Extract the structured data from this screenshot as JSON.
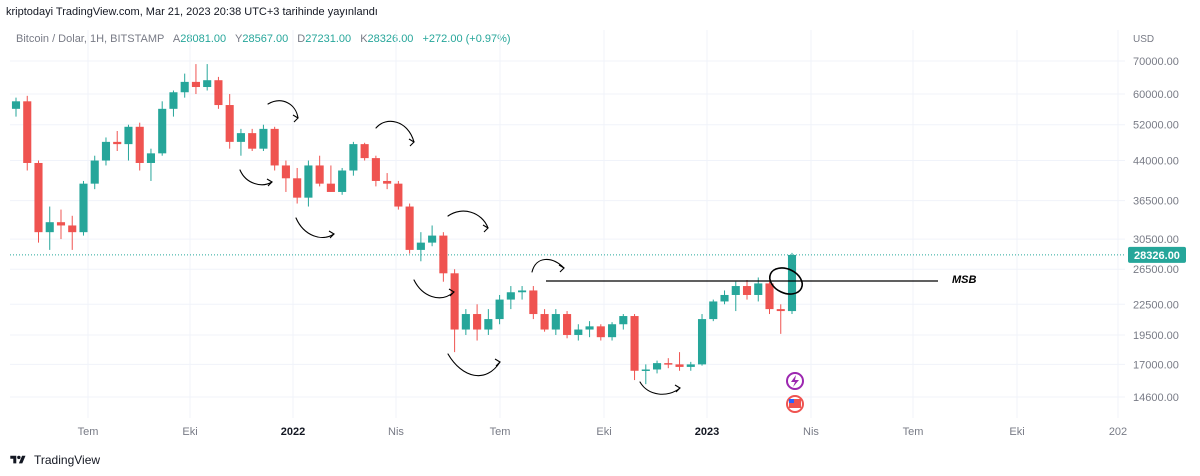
{
  "header": {
    "publish_text": "kriptodayi TradingView.com, Mar 21, 2023 20:38 UTC+3 tarihinde yayınlandı"
  },
  "symbol": {
    "name": "Bitcoin / Dolar, 1H, BITSTAMP",
    "open_label": "A",
    "open": "28081.00",
    "high_label": "Y",
    "high": "28567.00",
    "low_label": "D",
    "low": "27231.00",
    "close_label": "K",
    "close": "28326.00",
    "change": "+272.00 (+0.97%)"
  },
  "footer": {
    "brand": "TradingView"
  },
  "colors": {
    "up": "#26a69a",
    "down": "#ef5350",
    "axis_text": "#787b86",
    "current_price_bg": "#26a69a",
    "annotation": "#000000",
    "grid": "#f0f3fa"
  },
  "chart_data": {
    "type": "candlestick",
    "scale": "log",
    "currency_label": "USD",
    "y_ticks": [
      "70000.00",
      "60000.00",
      "52000.00",
      "44000.00",
      "36500.00",
      "30500.00",
      "26500.00",
      "22500.00",
      "19500.00",
      "17000.00",
      "14600.00"
    ],
    "current_price": "28326.00",
    "x_ticks": [
      "Tem",
      "Eki",
      "2022",
      "Nis",
      "Tem",
      "Eki",
      "2023",
      "Nis",
      "Tem",
      "Eki",
      "202"
    ],
    "annotation_label": "MSB",
    "candles": [
      [
        56000,
        59000,
        54000,
        58000
      ],
      [
        58000,
        59500,
        42000,
        43500
      ],
      [
        43500,
        44000,
        30000,
        31500
      ],
      [
        31500,
        35500,
        29000,
        33000
      ],
      [
        33000,
        35000,
        30500,
        32500
      ],
      [
        32500,
        34000,
        29000,
        31500
      ],
      [
        31500,
        40000,
        31000,
        39500
      ],
      [
        39500,
        45000,
        38500,
        44000
      ],
      [
        44000,
        49000,
        43000,
        48000
      ],
      [
        48000,
        50500,
        46000,
        47500
      ],
      [
        47500,
        52000,
        44000,
        51500
      ],
      [
        51500,
        52500,
        42000,
        43500
      ],
      [
        43500,
        46500,
        40000,
        45500
      ],
      [
        45500,
        58000,
        45000,
        56000
      ],
      [
        56000,
        61000,
        54000,
        60500
      ],
      [
        60500,
        66000,
        59000,
        63500
      ],
      [
        63500,
        69000,
        60000,
        62000
      ],
      [
        62000,
        69000,
        61000,
        64000
      ],
      [
        64000,
        65000,
        56000,
        57000
      ],
      [
        57000,
        60000,
        46500,
        48000
      ],
      [
        48000,
        51000,
        45000,
        50000
      ],
      [
        50000,
        51000,
        46000,
        46500
      ],
      [
        46500,
        52000,
        46000,
        51000
      ],
      [
        51000,
        51500,
        42000,
        43000
      ],
      [
        43000,
        44000,
        38000,
        40500
      ],
      [
        40500,
        42500,
        36000,
        37000
      ],
      [
        37000,
        44000,
        35500,
        43000
      ],
      [
        43000,
        45000,
        39000,
        39500
      ],
      [
        39500,
        43000,
        38000,
        38000
      ],
      [
        38000,
        42500,
        37500,
        42000
      ],
      [
        42000,
        48000,
        41000,
        47500
      ],
      [
        47500,
        47800,
        44000,
        44500
      ],
      [
        44500,
        45000,
        39000,
        40000
      ],
      [
        40000,
        41500,
        38500,
        39500
      ],
      [
        39500,
        40000,
        35000,
        35500
      ],
      [
        35500,
        36000,
        28500,
        29000
      ],
      [
        29000,
        31500,
        27500,
        30000
      ],
      [
        30000,
        32500,
        29500,
        31000
      ],
      [
        31000,
        31500,
        25000,
        26000
      ],
      [
        26000,
        26500,
        18000,
        20000
      ],
      [
        20000,
        22000,
        19500,
        21500
      ],
      [
        21500,
        22500,
        19000,
        20000
      ],
      [
        20000,
        22000,
        19500,
        21000
      ],
      [
        21000,
        23500,
        20500,
        23000
      ],
      [
        23000,
        24500,
        22000,
        23800
      ],
      [
        23800,
        24500,
        23000,
        24000
      ],
      [
        24000,
        24500,
        21000,
        21500
      ],
      [
        21500,
        22000,
        19800,
        20000
      ],
      [
        20000,
        22000,
        19500,
        21500
      ],
      [
        21500,
        21800,
        19200,
        19500
      ],
      [
        19500,
        20500,
        19000,
        20000
      ],
      [
        20000,
        20800,
        19300,
        20300
      ],
      [
        20300,
        20500,
        19000,
        19300
      ],
      [
        19300,
        20700,
        19000,
        20500
      ],
      [
        20500,
        21500,
        20000,
        21300
      ],
      [
        21300,
        21500,
        15800,
        16500
      ],
      [
        16500,
        17000,
        15500,
        16600
      ],
      [
        16600,
        17300,
        16300,
        17100
      ],
      [
        17100,
        17500,
        16700,
        17000
      ],
      [
        17000,
        18000,
        16500,
        16800
      ],
      [
        16800,
        17200,
        16500,
        17000
      ],
      [
        17000,
        21500,
        16900,
        21000
      ],
      [
        21000,
        23000,
        20800,
        22800
      ],
      [
        22800,
        24000,
        22500,
        23500
      ],
      [
        23500,
        25000,
        21800,
        24500
      ],
      [
        24500,
        25200,
        23000,
        23500
      ],
      [
        23500,
        25500,
        22800,
        24800
      ],
      [
        24800,
        25000,
        21500,
        22000
      ],
      [
        22000,
        22500,
        19600,
        21800
      ],
      [
        21800,
        28600,
        21500,
        28326
      ]
    ]
  }
}
